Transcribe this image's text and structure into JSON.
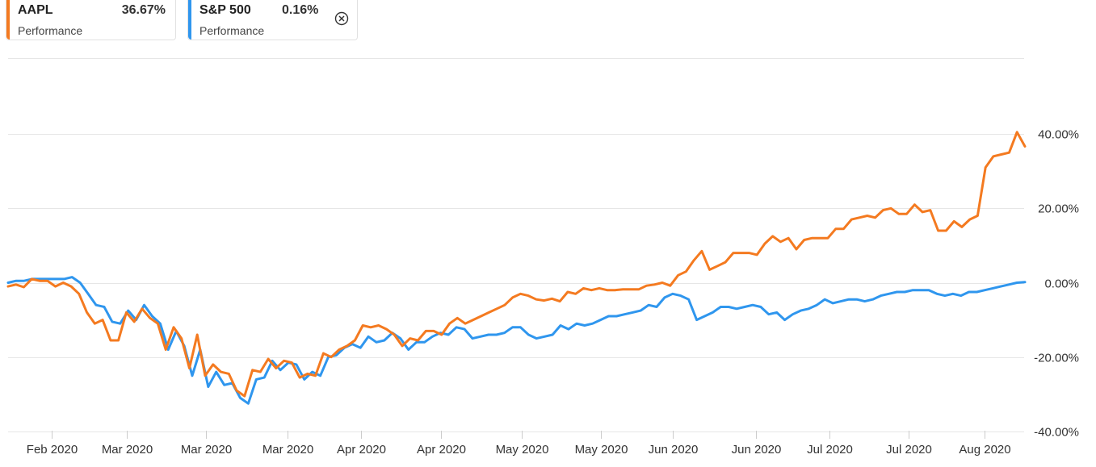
{
  "legend": [
    {
      "symbol": "AAPL",
      "change": "36.67%",
      "label": "Performance",
      "color": "#f47a20"
    },
    {
      "symbol": "S&P 500",
      "change": "0.16%",
      "label": "Performance",
      "color": "#2f96ee"
    }
  ],
  "icons": {
    "remove_series": "close-circle-icon"
  },
  "chart_data": {
    "type": "line",
    "ylim": [
      -40,
      40
    ],
    "y_ticks": [
      "40.00%",
      "20.00%",
      "0.00%",
      "-20.00%",
      "-40.00%"
    ],
    "x_ticks": [
      "Feb 2020",
      "Mar 2020",
      "Mar 2020",
      "Mar 2020",
      "Apr 2020",
      "Apr 2020",
      "May 2020",
      "May 2020",
      "Jun 2020",
      "Jun 2020",
      "Jul 2020",
      "Jul 2020",
      "Aug 2020"
    ],
    "grid": true,
    "series": [
      {
        "name": "AAPL",
        "color": "#f47a20",
        "values": [
          -1,
          -0.5,
          -1.2,
          1,
          0.5,
          0.5,
          -1,
          0,
          -1,
          -3,
          -8,
          -11,
          -10,
          -15.5,
          -15.5,
          -8,
          -10.5,
          -7,
          -9.5,
          -11,
          -18,
          -12,
          -15,
          -23,
          -14,
          -25,
          -22,
          -24,
          -24.5,
          -29,
          -30.5,
          -23.5,
          -24,
          -20.5,
          -23,
          -21,
          -21.5,
          -25.5,
          -24.5,
          -25,
          -19,
          -20,
          -18,
          -17,
          -15.5,
          -11.5,
          -12,
          -11.5,
          -12.5,
          -14,
          -17,
          -15,
          -15.5,
          -13,
          -13,
          -14,
          -11,
          -9.5,
          -11,
          -10,
          -9,
          -8,
          -7,
          -6,
          -4,
          -3,
          -3.5,
          -4.5,
          -4.8,
          -4.3,
          -5,
          -2.5,
          -3,
          -1.5,
          -2,
          -1.5,
          -2,
          -2,
          -1.8,
          -1.8,
          -1.8,
          -0.8,
          -0.5,
          0,
          -0.8,
          2,
          3,
          6,
          8.5,
          3.5,
          4.5,
          5.5,
          8,
          8,
          8,
          7.5,
          10.5,
          12.5,
          11,
          12,
          9,
          11.5,
          12,
          12,
          12,
          14.5,
          14.5,
          17,
          17.5,
          18,
          17.5,
          19.5,
          20,
          18.5,
          18.5,
          21,
          19,
          19.5,
          14,
          14,
          16.5,
          15,
          17,
          18,
          31,
          34,
          34.5,
          35,
          40.5,
          36.67
        ]
      },
      {
        "name": "S&P 500",
        "color": "#2f96ee",
        "values": [
          0,
          0.5,
          0.5,
          1,
          1,
          1,
          1,
          1,
          1.5,
          0,
          -3,
          -6,
          -6.5,
          -10.5,
          -11,
          -7.5,
          -10,
          -6,
          -9,
          -11,
          -18,
          -13,
          -17,
          -25,
          -18,
          -28,
          -24,
          -27.5,
          -27,
          -31,
          -32.5,
          -26,
          -25.5,
          -21,
          -23.5,
          -21.5,
          -22,
          -26,
          -24,
          -25,
          -20,
          -19.5,
          -17.5,
          -16.5,
          -17.5,
          -14.5,
          -16,
          -15.5,
          -13.5,
          -15,
          -18,
          -16,
          -16,
          -14.5,
          -13.5,
          -14,
          -12,
          -12.5,
          -15,
          -14.5,
          -14,
          -14,
          -13.5,
          -12,
          -12,
          -14,
          -15,
          -14.5,
          -14,
          -11.5,
          -12.5,
          -11,
          -11.5,
          -11,
          -10,
          -9,
          -9,
          -8.5,
          -8,
          -7.5,
          -6,
          -6.5,
          -4,
          -3,
          -3.5,
          -4.5,
          -10,
          -9,
          -8,
          -6.5,
          -6.5,
          -7,
          -6.5,
          -6,
          -6.5,
          -8.5,
          -8,
          -10,
          -8.5,
          -7.5,
          -7,
          -6,
          -4.5,
          -5.5,
          -5,
          -4.5,
          -4.5,
          -5,
          -4.5,
          -3.5,
          -3,
          -2.5,
          -2.5,
          -2,
          -2,
          -2,
          -3,
          -3.5,
          -3,
          -3.5,
          -2.5,
          -2.5,
          -2,
          -1.5,
          -1,
          -0.5,
          0,
          0.16
        ]
      }
    ]
  }
}
